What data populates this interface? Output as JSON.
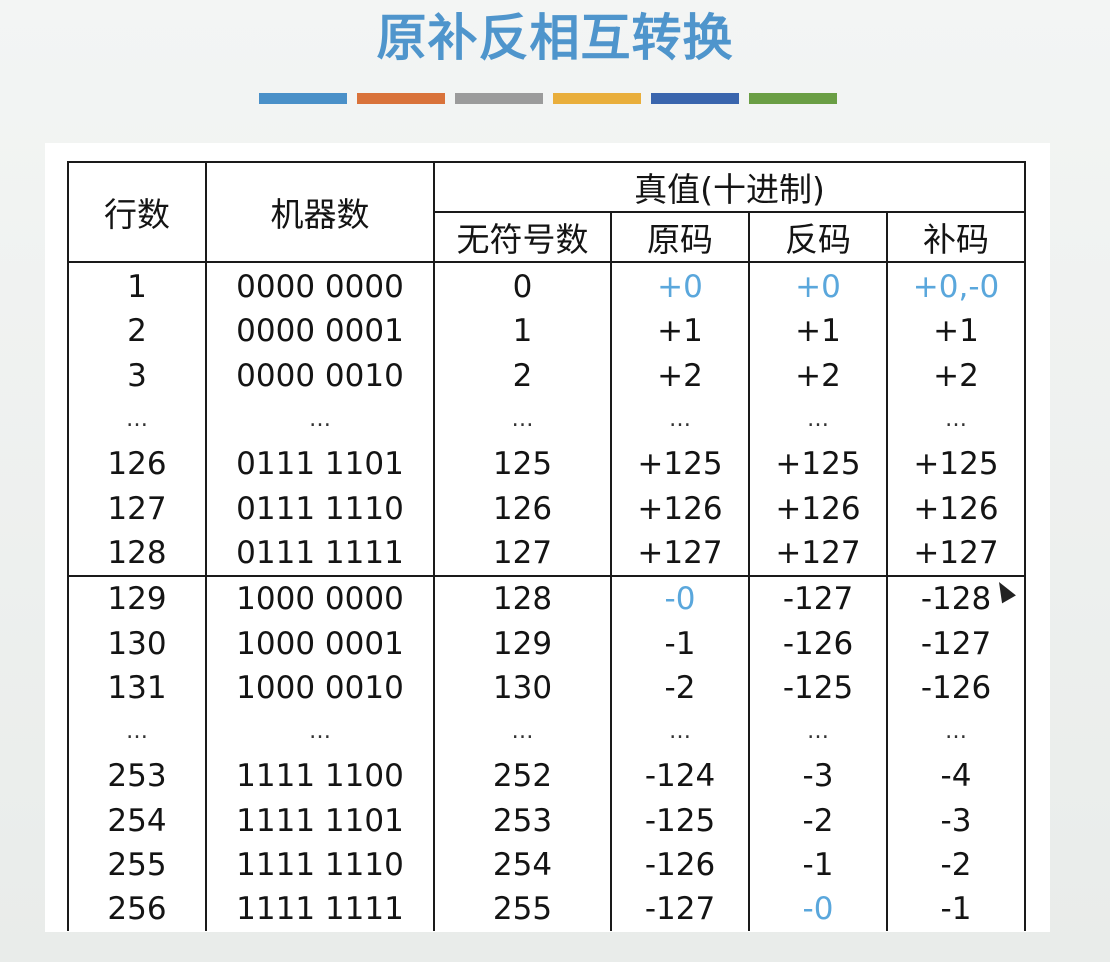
{
  "title": "原补反相互转换",
  "stripe_colors": [
    "#4a90c8",
    "#d9723a",
    "#9b9b9b",
    "#e9ae3b",
    "#3a65ad",
    "#6a9e44"
  ],
  "table": {
    "headers": {
      "row_number": "行数",
      "machine_number": "机器数",
      "true_value": "真值(十进制)",
      "unsigned": "无符号数",
      "sign_magnitude": "原码",
      "ones_complement": "反码",
      "twos_complement": "补码"
    },
    "rows": [
      {
        "n": "1",
        "machine": "0000 0000",
        "unsigned": "0",
        "sm": "+0",
        "oc": "+0",
        "tc": "+0,-0",
        "blue": [
          true,
          true,
          true
        ]
      },
      {
        "n": "2",
        "machine": "0000 0001",
        "unsigned": "1",
        "sm": "+1",
        "oc": "+1",
        "tc": "+1",
        "blue": [
          false,
          false,
          false
        ]
      },
      {
        "n": "3",
        "machine": "0000 0010",
        "unsigned": "2",
        "sm": "+2",
        "oc": "+2",
        "tc": "+2",
        "blue": [
          false,
          false,
          false
        ]
      },
      {
        "n": "…",
        "machine": "…",
        "unsigned": "…",
        "sm": "…",
        "oc": "…",
        "tc": "…",
        "blue": [
          false,
          false,
          false
        ],
        "ellipsis": true
      },
      {
        "n": "126",
        "machine": "0111 1101",
        "unsigned": "125",
        "sm": "+125",
        "oc": "+125",
        "tc": "+125",
        "blue": [
          false,
          false,
          false
        ]
      },
      {
        "n": "127",
        "machine": "0111 1110",
        "unsigned": "126",
        "sm": "+126",
        "oc": "+126",
        "tc": "+126",
        "blue": [
          false,
          false,
          false
        ]
      },
      {
        "n": "128",
        "machine": "0111 1111",
        "unsigned": "127",
        "sm": "+127",
        "oc": "+127",
        "tc": "+127",
        "blue": [
          false,
          false,
          false
        ],
        "section_end": true
      },
      {
        "n": "129",
        "machine": "1000 0000",
        "unsigned": "128",
        "sm": "-0",
        "oc": "-127",
        "tc": "-128",
        "blue": [
          true,
          false,
          false
        ]
      },
      {
        "n": "130",
        "machine": "1000 0001",
        "unsigned": "129",
        "sm": "-1",
        "oc": "-126",
        "tc": "-127",
        "blue": [
          false,
          false,
          false
        ]
      },
      {
        "n": "131",
        "machine": "1000 0010",
        "unsigned": "130",
        "sm": "-2",
        "oc": "-125",
        "tc": "-126",
        "blue": [
          false,
          false,
          false
        ]
      },
      {
        "n": "…",
        "machine": "…",
        "unsigned": "…",
        "sm": "…",
        "oc": "…",
        "tc": "…",
        "blue": [
          false,
          false,
          false
        ],
        "ellipsis": true
      },
      {
        "n": "253",
        "machine": "1111 1100",
        "unsigned": "252",
        "sm": "-124",
        "oc": "-3",
        "tc": "-4",
        "blue": [
          false,
          false,
          false
        ]
      },
      {
        "n": "254",
        "machine": "1111 1101",
        "unsigned": "253",
        "sm": "-125",
        "oc": "-2",
        "tc": "-3",
        "blue": [
          false,
          false,
          false
        ]
      },
      {
        "n": "255",
        "machine": "1111 1110",
        "unsigned": "254",
        "sm": "-126",
        "oc": "-1",
        "tc": "-2",
        "blue": [
          false,
          false,
          false
        ]
      },
      {
        "n": "256",
        "machine": "1111 1111",
        "unsigned": "255",
        "sm": "-127",
        "oc": "-0",
        "tc": "-1",
        "blue": [
          false,
          true,
          false
        ]
      }
    ]
  },
  "highlight_color": "#5aa7dc"
}
